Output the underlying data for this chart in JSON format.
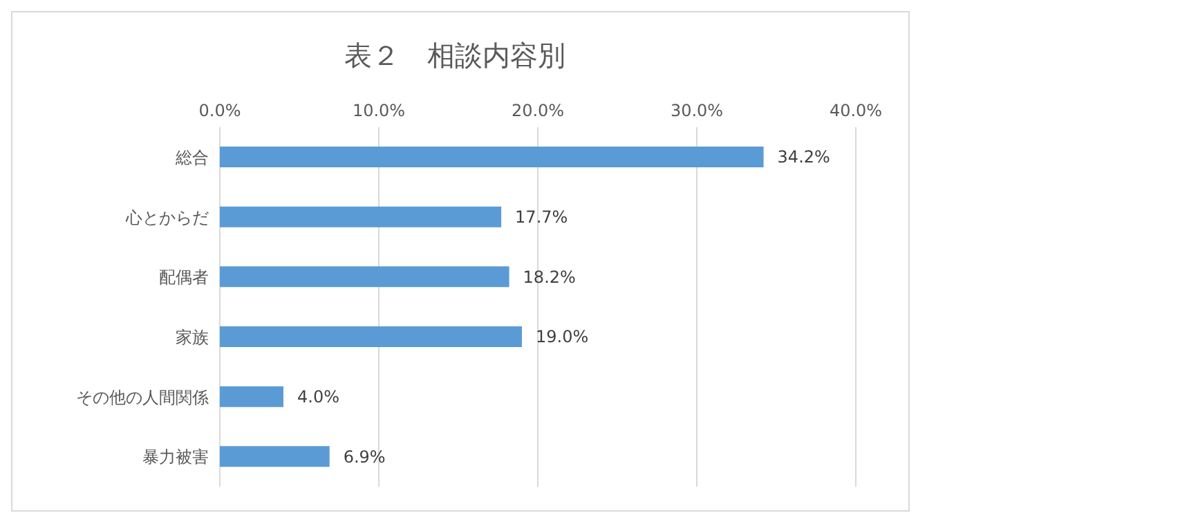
{
  "chart_data": {
    "type": "bar",
    "orientation": "horizontal",
    "title": "表２　相談内容別",
    "categories": [
      "総合",
      "心とからだ",
      "配偶者",
      "家族",
      "その他の人間関係",
      "暴力被害"
    ],
    "values": [
      34.2,
      17.7,
      18.2,
      19.0,
      4.0,
      6.9
    ],
    "value_labels": [
      "34.2%",
      "17.7%",
      "18.2%",
      "19.0%",
      "4.0%",
      "6.9%"
    ],
    "color": "#5b9bd5",
    "xlim": [
      0,
      40
    ],
    "xticks": [
      {
        "value": 0,
        "label": "0.0%"
      },
      {
        "value": 10,
        "label": "10.0%"
      },
      {
        "value": 20,
        "label": "20.0%"
      },
      {
        "value": 30,
        "label": "30.0%"
      },
      {
        "value": 40,
        "label": "40.0%"
      }
    ],
    "grid": "x",
    "legend": false
  }
}
